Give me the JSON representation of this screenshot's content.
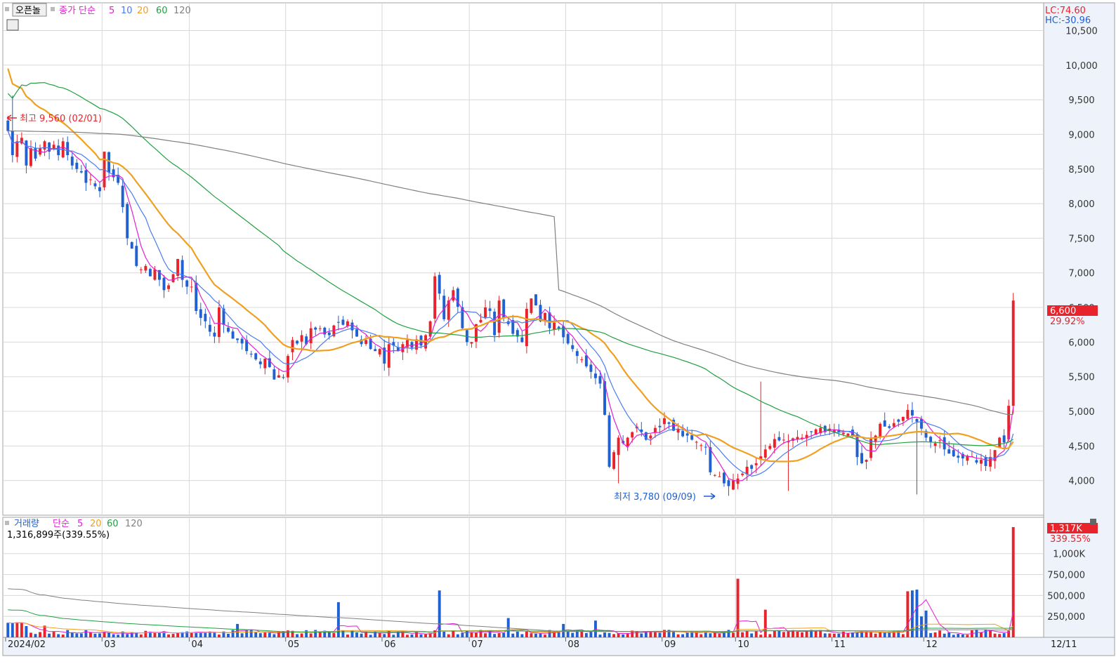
{
  "colors": {
    "up": "#e8232b",
    "down": "#2060d0",
    "ma5": "#e020d0",
    "ma10": "#4a7bf0",
    "ma20": "#f0a020",
    "ma60": "#20a040",
    "ma120": "#808080",
    "grid": "#d8d8d8",
    "axisbg": "#eef2fa",
    "label_bg_red": "#e8232b"
  },
  "price_panel": {
    "open_interest_label": "오픈놀",
    "ma_label": "종가 단순",
    "ma_periods": [
      "5",
      "10",
      "20",
      "60",
      "120"
    ],
    "lc_label": "LC:74.60",
    "hc_label": "HC:-30.96",
    "high_annotation": "최고 9,560 (02/01)",
    "low_annotation": "최저 3,780 (09/09)",
    "current_price_label": "6,600",
    "current_change_label": "29.92%"
  },
  "volume_panel": {
    "title_label": "거래량",
    "ma_label": "단순",
    "ma_periods": [
      "5",
      "20",
      "60",
      "120"
    ],
    "volume_info": "1,316,899주(339.55%)",
    "current_volume_label": "1,317K",
    "current_volume_change": "339.55%"
  },
  "x_axis": {
    "labels": [
      "2024/02",
      "03",
      "04",
      "05",
      "06",
      "07",
      "08",
      "09",
      "10",
      "11",
      "12",
      "12/11"
    ]
  },
  "chart_data": [
    {
      "type": "candlestick",
      "title": "오픈놀",
      "ylim": [
        3500,
        10900
      ],
      "y_ticks": [
        4000,
        4500,
        5000,
        5500,
        6000,
        6500,
        7000,
        7500,
        8000,
        8500,
        9000,
        9500,
        10000,
        10500
      ],
      "y_tick_labels": [
        "4,000",
        "4,500",
        "5,000",
        "5,500",
        "6,000",
        "6,500",
        "7,000",
        "7,500",
        "8,000",
        "8,500",
        "9,000",
        "9,500",
        "10,000",
        "10,500"
      ],
      "month_labels": [
        "2024/02",
        "03",
        "04",
        "05",
        "06",
        "07",
        "08",
        "09",
        "10",
        "11",
        "12"
      ],
      "month_start_index": [
        0,
        21,
        40,
        61,
        82,
        101,
        122,
        143,
        159,
        180,
        200
      ],
      "close": [
        9050,
        8700,
        8900,
        8950,
        8550,
        8800,
        8650,
        8800,
        8900,
        8750,
        8850,
        8700,
        8900,
        8700,
        8550,
        8500,
        8450,
        8300,
        8350,
        8250,
        8180,
        8750,
        8450,
        8380,
        8300,
        7950,
        7500,
        7350,
        7100,
        7050,
        7100,
        6950,
        7050,
        6900,
        6750,
        6820,
        6980,
        7200,
        6900,
        6800,
        6800,
        6450,
        6350,
        6300,
        6150,
        6080,
        6500,
        6250,
        6150,
        6050,
        6030,
        5980,
        5870,
        5830,
        5750,
        5680,
        5760,
        5640,
        5460,
        5520,
        5490,
        5800,
        6030,
        5980,
        6100,
        5970,
        6200,
        6180,
        6200,
        6110,
        6100,
        6240,
        6280,
        6250,
        6300,
        6170,
        6080,
        5970,
        6030,
        5900,
        5870,
        5900,
        5690,
        5970,
        5950,
        5870,
        5970,
        6030,
        5920,
        6040,
        5950,
        6100,
        6300,
        6950,
        6700,
        6330,
        6600,
        6750,
        6510,
        6200,
        6000,
        6000,
        6260,
        6320,
        6500,
        6450,
        6100,
        6600,
        6350,
        6260,
        6120,
        6080,
        6000,
        6480,
        6630,
        6530,
        6300,
        6420,
        6200,
        6280,
        6200,
        6070,
        5980,
        5900,
        5800,
        5750,
        5650,
        5570,
        5480,
        5400,
        4950,
        4200,
        4410,
        4620,
        4540,
        4620,
        4700,
        4780,
        4700,
        4590,
        4650,
        4760,
        4770,
        4900,
        4820,
        4720,
        4750,
        4640,
        4650,
        4590,
        4560,
        4510,
        4480,
        4120,
        4080,
        4060,
        3960,
        3920,
        4000,
        4030,
        4100,
        4200,
        4170,
        4250,
        4350,
        4450,
        4500,
        4600,
        4580,
        4590,
        4570,
        4610,
        4630,
        4620,
        4660,
        4700,
        4740,
        4760,
        4700,
        4750,
        4730,
        4700,
        4690,
        4680,
        4640,
        4340,
        4250,
        4300,
        4600,
        4650,
        4820,
        4780,
        4760,
        4830,
        4850,
        4920,
        5020,
        4940,
        4850,
        4750,
        4620,
        4560,
        4540,
        4580,
        4450,
        4390,
        4350,
        4330,
        4320,
        4360,
        4350,
        4260,
        4300,
        4210,
        4340,
        4440,
        4620,
        4550,
        5080,
        6600
      ],
      "open_approx": "derived",
      "volume_ylim": [
        0,
        1350000
      ],
      "volume_ticks": [
        250000,
        500000,
        750000,
        1000000
      ],
      "volume_tick_labels": [
        "250,000",
        "500,000",
        "750,000",
        "1,000K"
      ],
      "volume_last": 1316899,
      "series": [
        {
          "name": "5",
          "period": 5
        },
        {
          "name": "10",
          "period": 10
        },
        {
          "name": "20",
          "period": 20
        },
        {
          "name": "60",
          "period": 60
        },
        {
          "name": "120",
          "period": 120
        }
      ]
    }
  ]
}
